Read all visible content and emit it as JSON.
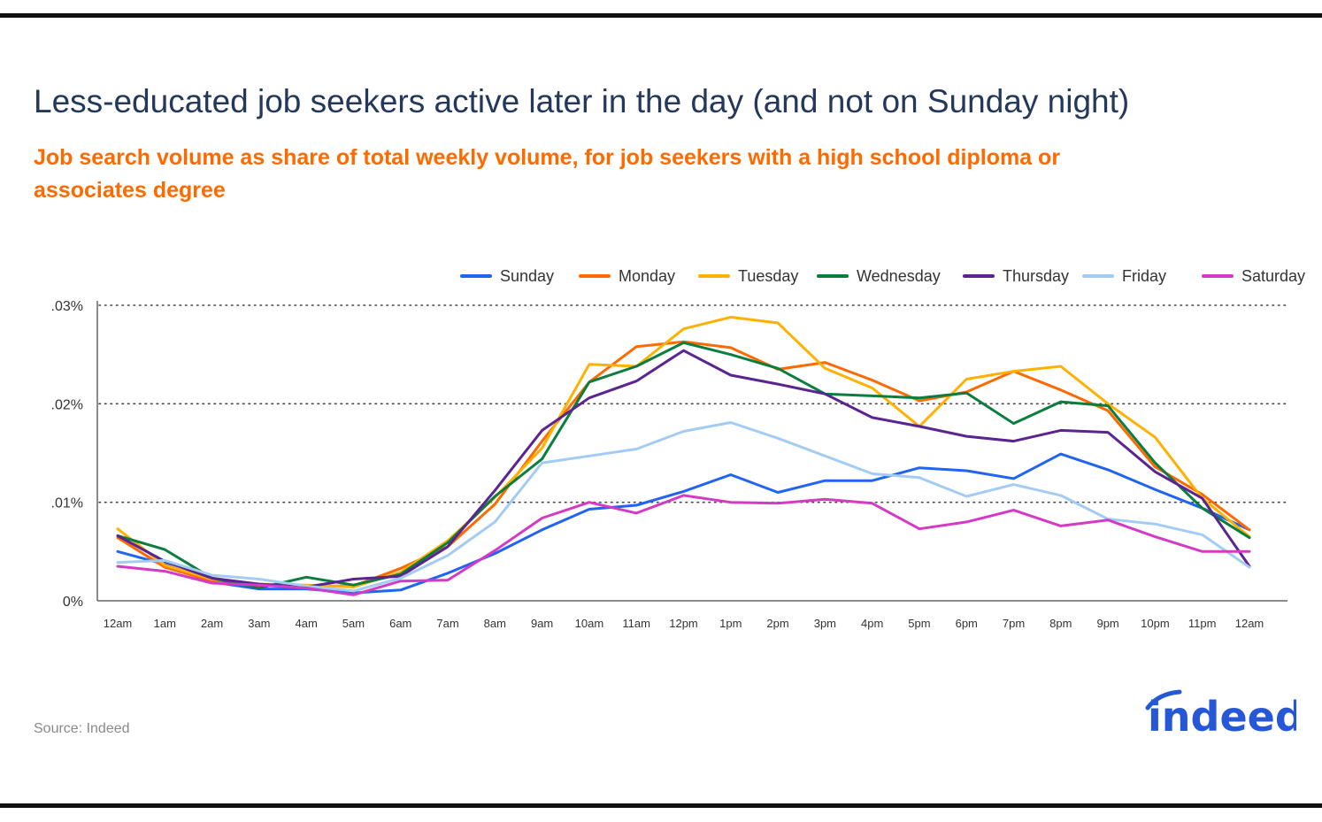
{
  "title": "Less-educated job seekers active later in the day (and not on Sunday night)",
  "subtitle": "Job search volume as share of total weekly volume, for job seekers with a high school diploma or associates degree",
  "source": "Source: Indeed",
  "logo_text": "indeed",
  "colors": {
    "title": "#24385b",
    "subtitle": "#ff6a00",
    "logo": "#2557d6"
  },
  "chart_data": {
    "type": "line",
    "title": "Less-educated job seekers active later in the day (and not on Sunday night)",
    "xlabel": "",
    "ylabel": "",
    "ylim": [
      0,
      0.03
    ],
    "y_ticks": [
      0,
      0.01,
      0.02,
      0.03
    ],
    "y_tick_labels": [
      "0%",
      ".01%",
      ".02%",
      ".03%"
    ],
    "grid": "horizontal dotted",
    "legend_position": "top-right",
    "categories": [
      "12am",
      "1am",
      "2am",
      "3am",
      "4am",
      "5am",
      "6am",
      "7am",
      "8am",
      "9am",
      "10am",
      "11am",
      "12pm",
      "1pm",
      "2pm",
      "3pm",
      "4pm",
      "5pm",
      "6pm",
      "7pm",
      "8pm",
      "9pm",
      "10pm",
      "11pm",
      "12am"
    ],
    "series": [
      {
        "name": "Sunday",
        "color": "#2164f3",
        "values": [
          0.005,
          0.0037,
          0.0019,
          0.0012,
          0.0012,
          0.0008,
          0.0011,
          0.0028,
          0.0048,
          0.0072,
          0.0093,
          0.0097,
          0.0111,
          0.0128,
          0.011,
          0.0122,
          0.0122,
          0.0135,
          0.0132,
          0.0124,
          0.0149,
          0.0133,
          0.0113,
          0.0094,
          0.0072
        ]
      },
      {
        "name": "Monday",
        "color": "#ff6a00",
        "values": [
          0.0064,
          0.0034,
          0.002,
          0.0016,
          0.0015,
          0.0015,
          0.0033,
          0.0055,
          0.0098,
          0.0162,
          0.0222,
          0.0258,
          0.0263,
          0.0257,
          0.0235,
          0.0242,
          0.0224,
          0.0203,
          0.0212,
          0.0233,
          0.0214,
          0.0193,
          0.0136,
          0.0108,
          0.0072
        ]
      },
      {
        "name": "Tuesday",
        "color": "#ffb100",
        "values": [
          0.0073,
          0.0036,
          0.0022,
          0.0017,
          0.0016,
          0.0014,
          0.0029,
          0.0061,
          0.0105,
          0.0155,
          0.024,
          0.0238,
          0.0276,
          0.0288,
          0.0282,
          0.0236,
          0.0216,
          0.0177,
          0.0225,
          0.0233,
          0.0238,
          0.02,
          0.0166,
          0.0104,
          0.0065
        ]
      },
      {
        "name": "Wednesday",
        "color": "#0b7d3e",
        "values": [
          0.0066,
          0.0052,
          0.0023,
          0.0013,
          0.0024,
          0.0016,
          0.0027,
          0.0059,
          0.0106,
          0.0144,
          0.0222,
          0.0238,
          0.0262,
          0.025,
          0.0236,
          0.021,
          0.0208,
          0.0206,
          0.0211,
          0.018,
          0.0202,
          0.0198,
          0.014,
          0.0094,
          0.0064
        ]
      },
      {
        "name": "Thursday",
        "color": "#5a2491",
        "values": [
          0.0066,
          0.004,
          0.0023,
          0.0017,
          0.0014,
          0.0022,
          0.0025,
          0.0055,
          0.0112,
          0.0173,
          0.0206,
          0.0223,
          0.0254,
          0.0229,
          0.022,
          0.021,
          0.0186,
          0.0177,
          0.0167,
          0.0162,
          0.0173,
          0.0171,
          0.0131,
          0.0104,
          0.0035
        ]
      },
      {
        "name": "Friday",
        "color": "#a3ccf5",
        "values": [
          0.0039,
          0.0041,
          0.0026,
          0.0022,
          0.0015,
          0.001,
          0.0023,
          0.0046,
          0.008,
          0.014,
          0.0147,
          0.0154,
          0.0172,
          0.0181,
          0.0165,
          0.0147,
          0.0129,
          0.0125,
          0.0106,
          0.0118,
          0.0107,
          0.0083,
          0.0078,
          0.0067,
          0.0034
        ]
      },
      {
        "name": "Saturday",
        "color": "#d43ac4",
        "values": [
          0.0035,
          0.003,
          0.0018,
          0.0016,
          0.0013,
          0.0006,
          0.002,
          0.0021,
          0.0051,
          0.0084,
          0.01,
          0.0089,
          0.0107,
          0.01,
          0.0099,
          0.0103,
          0.0099,
          0.0073,
          0.008,
          0.0092,
          0.0076,
          0.0082,
          0.0065,
          0.005,
          0.005
        ]
      }
    ]
  }
}
